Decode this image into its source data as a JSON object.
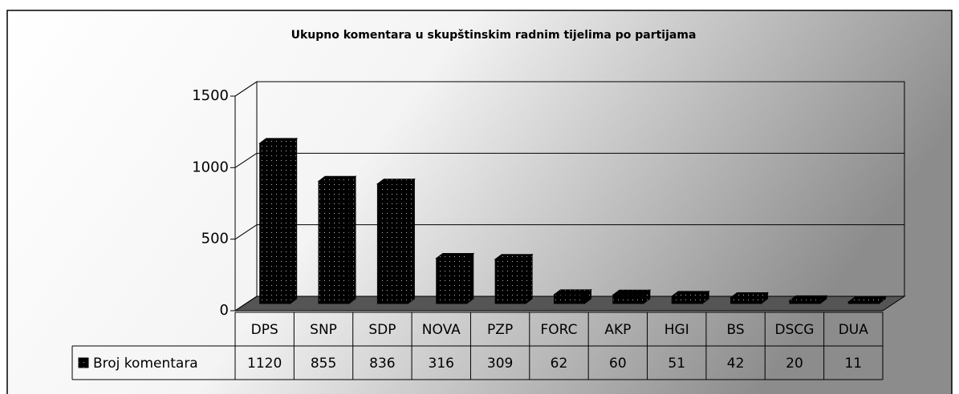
{
  "chart_data": {
    "type": "bar",
    "title": "Ukupno komentara u skupštinskim radnim tijelima po partijama",
    "categories": [
      "DPS",
      "SNP",
      "SDP",
      "NOVA",
      "PZP",
      "FORC",
      "AKP",
      "HGI",
      "BS",
      "DSCG",
      "DUA"
    ],
    "series": [
      {
        "name": "Broj komentara",
        "color": "#000000",
        "values": [
          1120,
          855,
          836,
          316,
          309,
          62,
          60,
          51,
          42,
          20,
          11
        ]
      }
    ],
    "ylim": [
      0,
      1500
    ],
    "yticks": [
      0,
      500,
      1000,
      1500
    ],
    "grid": true
  }
}
